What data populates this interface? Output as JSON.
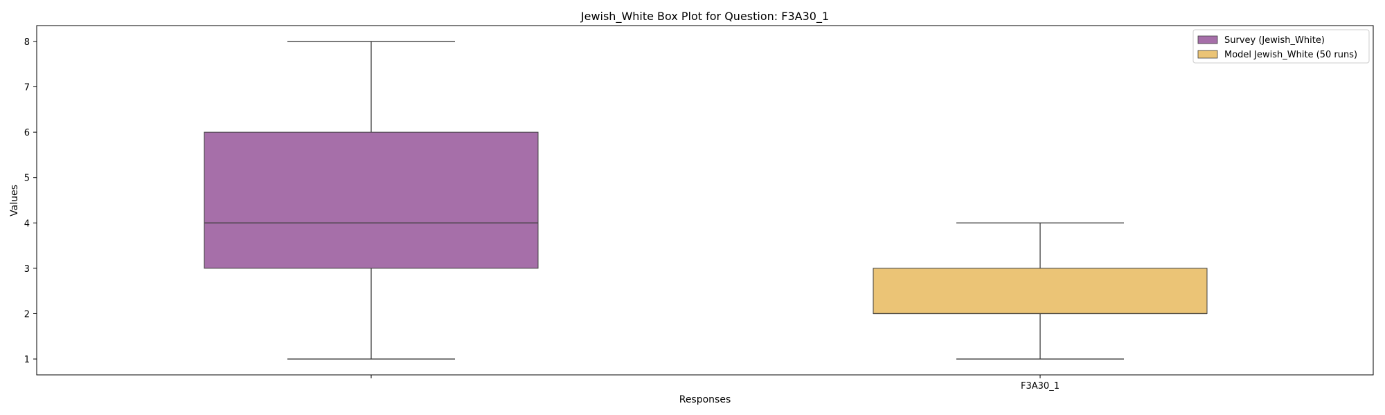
{
  "chart_data": {
    "type": "box",
    "title": "Jewish_White Box Plot for Question: F3A30_1",
    "xlabel": "Responses",
    "ylabel": "Values",
    "ylim": [
      0.65,
      8.35
    ],
    "yticks": [
      1,
      2,
      3,
      4,
      5,
      6,
      7,
      8
    ],
    "grid": false,
    "legend_position": "top-right",
    "categories": [
      "",
      "F3A30_1"
    ],
    "series": [
      {
        "name": "Survey (Jewish_White)",
        "color": "#a66fa9",
        "min": 1,
        "q1": 3,
        "median": 4,
        "q3": 6,
        "max": 8
      },
      {
        "name": "Model Jewish_White (50 runs)",
        "color": "#ebc476",
        "min": 1,
        "q1": 2,
        "median": 2,
        "q3": 3,
        "max": 4
      }
    ]
  }
}
